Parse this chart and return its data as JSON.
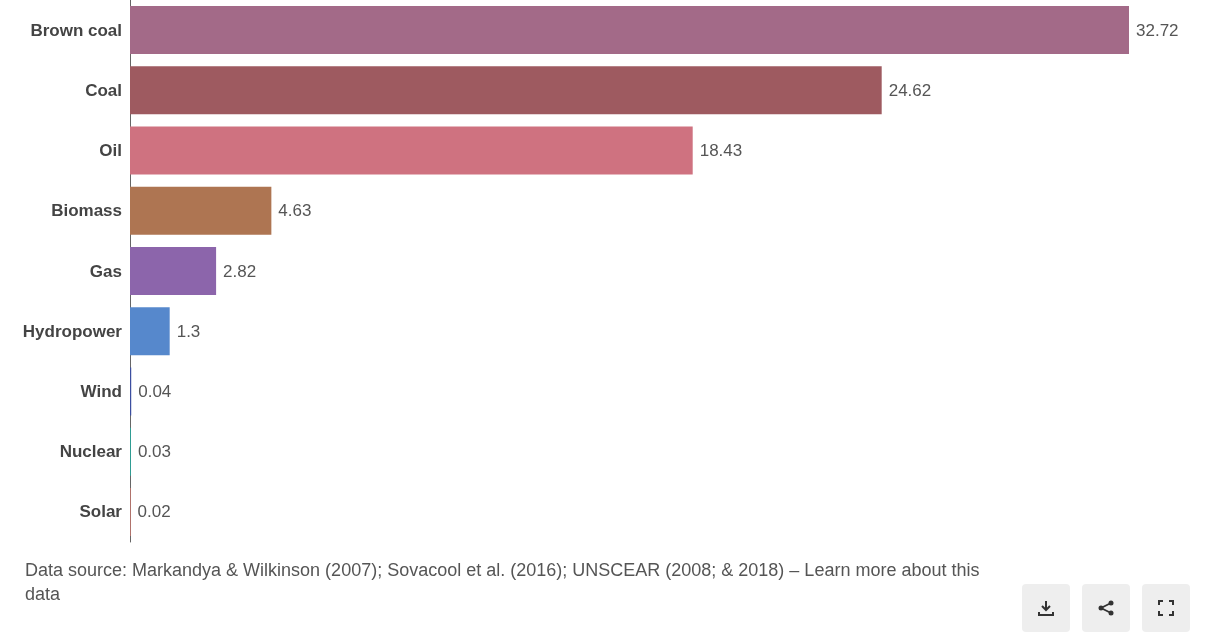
{
  "chart_data": {
    "type": "bar",
    "orientation": "horizontal",
    "categories": [
      "Brown coal",
      "Coal",
      "Oil",
      "Biomass",
      "Gas",
      "Hydropower",
      "Wind",
      "Nuclear",
      "Solar"
    ],
    "values": [
      32.72,
      24.62,
      18.43,
      4.63,
      2.82,
      1.3,
      0.04,
      0.03,
      0.02
    ],
    "colors": [
      "#a36a88",
      "#9e5a60",
      "#cf7280",
      "#ae7552",
      "#8c65ab",
      "#5688cc",
      "#3b4ea0",
      "#2aa198",
      "#e07b6f"
    ],
    "data_labels": true,
    "annotations": [
      "Data source: Markandya & Wilkinson (2007); Sovacool et al. (2016); UNSCEAR (2008; & 2018) – Learn more about this data"
    ]
  }
}
